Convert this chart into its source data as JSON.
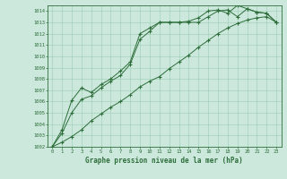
{
  "title": "Graphe pression niveau de la mer (hPa)",
  "background_color": "#cce8dc",
  "grid_color": "#99ccb3",
  "line_color": "#2d6e3a",
  "marker": "+",
  "marker_size": 3,
  "marker_lw": 0.8,
  "line_width": 0.7,
  "xlim": [
    -0.5,
    23.5
  ],
  "ylim": [
    1002,
    1014.5
  ],
  "xtick_labels": [
    "0",
    "1",
    "2",
    "3",
    "4",
    "5",
    "6",
    "7",
    "8",
    "9",
    "10",
    "11",
    "12",
    "13",
    "14",
    "15",
    "16",
    "17",
    "18",
    "19",
    "20",
    "21",
    "22",
    "23"
  ],
  "ytick_labels": [
    "1002",
    "1003",
    "1004",
    "1005",
    "1006",
    "1007",
    "1008",
    "1009",
    "1010",
    "1011",
    "1012",
    "1013",
    "1014"
  ],
  "series1_x": [
    0,
    1,
    2,
    3,
    4,
    5,
    6,
    7,
    8,
    9,
    10,
    11,
    12,
    13,
    14,
    15,
    16,
    17,
    18,
    19,
    20,
    21,
    22,
    23
  ],
  "series1_y": [
    1002.0,
    1003.2,
    1005.0,
    1006.2,
    1006.5,
    1007.2,
    1007.8,
    1008.3,
    1009.3,
    1011.5,
    1012.2,
    1013.0,
    1013.0,
    1013.0,
    1013.0,
    1013.0,
    1013.5,
    1014.0,
    1014.1,
    1013.5,
    1014.2,
    1013.9,
    1013.8,
    1013.0
  ],
  "series2_x": [
    0,
    1,
    2,
    3,
    4,
    5,
    6,
    7,
    8,
    9,
    10,
    11,
    12,
    13,
    14,
    15,
    16,
    17,
    18,
    19,
    20,
    21,
    22,
    23
  ],
  "series2_y": [
    1002.0,
    1003.5,
    1006.1,
    1007.2,
    1006.8,
    1007.5,
    1008.0,
    1008.7,
    1009.5,
    1012.0,
    1012.5,
    1013.0,
    1013.0,
    1013.0,
    1013.1,
    1013.4,
    1014.0,
    1014.1,
    1013.8,
    1014.5,
    1014.2,
    1013.9,
    1013.8,
    1013.0
  ],
  "series3_x": [
    0,
    1,
    2,
    3,
    4,
    5,
    6,
    7,
    8,
    9,
    10,
    11,
    12,
    13,
    14,
    15,
    16,
    17,
    18,
    19,
    20,
    21,
    22,
    23
  ],
  "series3_y": [
    1002.0,
    1002.4,
    1002.9,
    1003.5,
    1004.3,
    1004.9,
    1005.5,
    1006.0,
    1006.6,
    1007.3,
    1007.8,
    1008.2,
    1008.9,
    1009.5,
    1010.1,
    1010.8,
    1011.4,
    1012.0,
    1012.5,
    1012.9,
    1013.2,
    1013.4,
    1013.5,
    1013.0
  ]
}
